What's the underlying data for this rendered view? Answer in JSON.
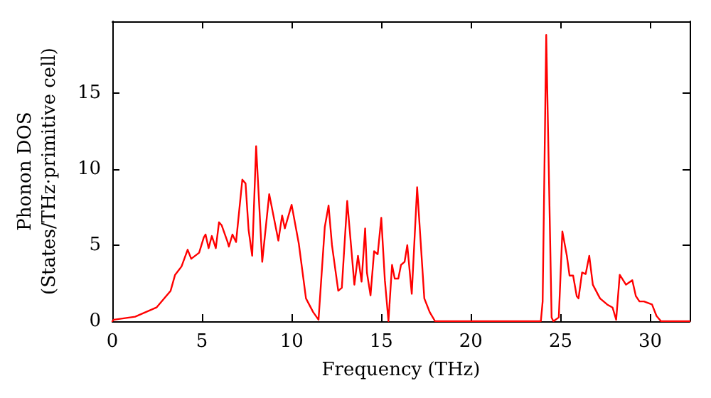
{
  "chart_data": {
    "type": "line",
    "xlabel": "Frequency (THz)",
    "ylabel": "Phonon DOS\n(States/THz·primitive cell)",
    "x": [
      0,
      0.08,
      1.27,
      2.46,
      3.25,
      3.5,
      3.86,
      4.2,
      4.4,
      4.84,
      5.1,
      5.2,
      5.37,
      5.55,
      5.77,
      5.95,
      6.1,
      6.43,
      6.5,
      6.7,
      6.9,
      7.25,
      7.43,
      7.6,
      7.8,
      8.02,
      8.36,
      8.75,
      9.26,
      9.47,
      9.62,
      10.0,
      10.4,
      10.8,
      11.2,
      11.5,
      11.85,
      12.06,
      12.25,
      12.6,
      12.8,
      13.1,
      13.5,
      13.7,
      13.9,
      14.1,
      14.2,
      14.4,
      14.6,
      14.8,
      15.0,
      15.2,
      15.4,
      15.6,
      15.75,
      15.95,
      16.1,
      16.3,
      16.45,
      16.7,
      17.0,
      17.4,
      17.7,
      18.0,
      23.9,
      24.0,
      24.2,
      24.5,
      24.6,
      24.9,
      25.1,
      25.35,
      25.5,
      25.7,
      25.9,
      26.0,
      26.2,
      26.4,
      26.6,
      26.8,
      27.2,
      27.6,
      27.9,
      28.1,
      28.3,
      28.65,
      29.0,
      29.2,
      29.4,
      29.65,
      30.1,
      30.35,
      30.6,
      32.2
    ],
    "values": [
      0,
      0.1,
      0.3,
      0.9,
      2.0,
      3.05,
      3.6,
      4.7,
      4.1,
      4.5,
      5.5,
      5.7,
      4.8,
      5.6,
      4.8,
      6.5,
      6.3,
      5.2,
      4.9,
      5.7,
      5.2,
      9.3,
      9.05,
      6.0,
      4.3,
      11.5,
      3.9,
      8.35,
      5.3,
      6.95,
      6.1,
      7.65,
      5.1,
      1.5,
      0.6,
      0.1,
      6.2,
      7.6,
      5.0,
      2.0,
      2.2,
      7.9,
      2.4,
      4.3,
      2.6,
      6.1,
      3.2,
      1.7,
      4.6,
      4.4,
      6.8,
      2.7,
      0,
      3.7,
      2.8,
      2.8,
      3.7,
      3.9,
      5.0,
      1.8,
      8.8,
      1.5,
      0.6,
      0,
      0,
      1.3,
      18.8,
      0.25,
      0,
      0.25,
      5.9,
      4.3,
      3.0,
      3.0,
      1.65,
      1.5,
      3.2,
      3.1,
      4.3,
      2.4,
      1.5,
      1.1,
      0.9,
      0.1,
      3.05,
      2.4,
      2.7,
      1.65,
      1.3,
      1.3,
      1.1,
      0.35,
      0,
      0
    ],
    "color": "#ff0000",
    "xlim": [
      0,
      32.2
    ],
    "xticks": [
      0,
      5,
      10,
      15,
      20,
      25,
      30
    ],
    "ylim": [
      0,
      19.7
    ],
    "yticks": [
      0,
      5,
      10,
      15
    ],
    "grid": false,
    "marker": "none",
    "line_style": "solid"
  }
}
